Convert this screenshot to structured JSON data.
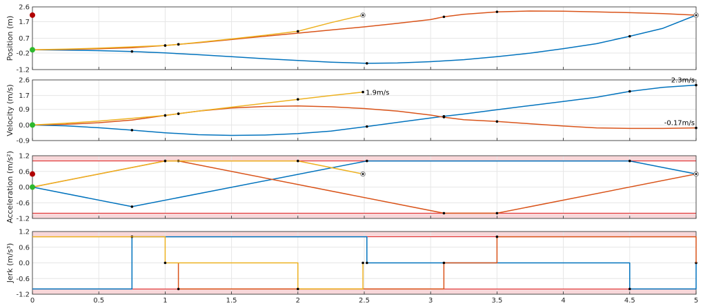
{
  "colors": {
    "blue": "#0072BD",
    "orange": "#D95319",
    "yellow": "#EDB120",
    "limit": "#E03030",
    "limit_band": "#F8D7D9",
    "start_marker": "#2DB82D",
    "end_marker": "#B00000",
    "grid": "#E6E6E6"
  },
  "x_axis": {
    "ticks": [
      0,
      0.5,
      1,
      1.5,
      2,
      2.5,
      3,
      3.5,
      4,
      4.5,
      5
    ],
    "tick_labels": [
      "0",
      "0.5",
      "1",
      "1.5",
      "2",
      "2.5",
      "3",
      "3.5",
      "4",
      "4.5",
      "5"
    ],
    "lim": [
      0,
      5
    ]
  },
  "chart_data": [
    {
      "type": "line",
      "ylabel": "Position (m)",
      "ylim": [
        -1.2,
        2.6
      ],
      "yticks": [
        2.6,
        1.7,
        0.7,
        -0.2,
        -1.2
      ],
      "ytick_labels": [
        "2.6",
        "1.7",
        "0.7",
        "-0.2",
        "-1.2"
      ],
      "grid": true,
      "limit": null,
      "start_value": 0.0,
      "target_value": 2.1,
      "series": [
        {
          "color_key": "blue",
          "x": [
            0,
            0.25,
            0.5,
            0.75,
            1.0,
            1.25,
            1.5,
            1.75,
            2.0,
            2.25,
            2.52,
            2.75,
            3.0,
            3.25,
            3.5,
            3.75,
            4.0,
            4.25,
            4.5,
            4.75,
            5.0
          ],
          "y": [
            0.0,
            -0.02,
            -0.05,
            -0.1,
            -0.19,
            -0.3,
            -0.42,
            -0.54,
            -0.65,
            -0.75,
            -0.82,
            -0.8,
            -0.72,
            -0.6,
            -0.42,
            -0.2,
            0.07,
            0.37,
            0.82,
            1.3,
            2.1
          ],
          "markers_x": [
            0.75,
            2.52,
            4.5,
            5.0
          ],
          "markers_y": [
            -0.1,
            -0.82,
            0.82,
            2.1
          ],
          "end_marker": true
        },
        {
          "color_key": "orange",
          "x": [
            0,
            0.25,
            0.5,
            0.75,
            1.0,
            1.1,
            1.25,
            1.5,
            1.75,
            2.0,
            2.25,
            2.5,
            2.75,
            3.0,
            3.1,
            3.25,
            3.5,
            3.75,
            4.0,
            4.25,
            4.5,
            4.75,
            5.0
          ],
          "y": [
            0.0,
            0.02,
            0.06,
            0.13,
            0.26,
            0.33,
            0.43,
            0.62,
            0.82,
            1.01,
            1.2,
            1.39,
            1.6,
            1.83,
            2.0,
            2.15,
            2.3,
            2.35,
            2.34,
            2.3,
            2.25,
            2.19,
            2.1
          ],
          "markers_x": [
            1.0,
            1.1,
            3.1,
            3.5
          ],
          "markers_y": [
            0.26,
            0.33,
            2.0,
            2.3
          ],
          "end_marker": true
        },
        {
          "color_key": "yellow",
          "x": [
            0,
            0.25,
            0.5,
            0.75,
            1.0,
            1.1,
            1.25,
            1.5,
            1.75,
            2.0,
            2.25,
            2.49
          ],
          "y": [
            0.0,
            0.04,
            0.1,
            0.18,
            0.26,
            0.33,
            0.45,
            0.66,
            0.88,
            1.12,
            1.65,
            2.1
          ],
          "markers_x": [
            1.0,
            1.1,
            2.0
          ],
          "markers_y": [
            0.26,
            0.33,
            1.12
          ],
          "end_marker": true
        }
      ]
    },
    {
      "type": "line",
      "ylabel": "Velocity (m/s)",
      "ylim": [
        -0.9,
        2.6
      ],
      "yticks": [
        2.6,
        1.7,
        0.9,
        0.0,
        -0.9
      ],
      "ytick_labels": [
        "2.6",
        "1.7",
        "0.9",
        "0.0",
        "-0.9"
      ],
      "grid": true,
      "limit": null,
      "start_value": 0.0,
      "target_value": null,
      "series": [
        {
          "color_key": "blue",
          "x": [
            0,
            0.25,
            0.5,
            0.75,
            1.0,
            1.25,
            1.5,
            1.75,
            2.0,
            2.25,
            2.52,
            2.75,
            3.0,
            3.1,
            3.25,
            3.5,
            3.75,
            4.0,
            4.25,
            4.5,
            4.75,
            5.0
          ],
          "y": [
            0.0,
            -0.05,
            -0.16,
            -0.3,
            -0.45,
            -0.56,
            -0.6,
            -0.58,
            -0.5,
            -0.35,
            -0.09,
            0.15,
            0.4,
            0.5,
            0.63,
            0.88,
            1.12,
            1.36,
            1.6,
            1.94,
            2.17,
            2.3
          ],
          "markers_x": [
            0.75,
            2.52,
            3.1,
            4.5,
            5.0
          ],
          "markers_y": [
            -0.3,
            -0.09,
            0.5,
            1.94,
            2.3
          ]
        },
        {
          "color_key": "orange",
          "x": [
            0,
            0.25,
            0.5,
            0.75,
            1.0,
            1.1,
            1.25,
            1.5,
            1.75,
            2.0,
            2.25,
            2.5,
            2.75,
            3.0,
            3.1,
            3.25,
            3.5,
            3.75,
            4.0,
            4.25,
            4.5,
            4.75,
            5.0
          ],
          "y": [
            0.0,
            0.04,
            0.13,
            0.28,
            0.55,
            0.65,
            0.8,
            0.98,
            1.07,
            1.1,
            1.05,
            0.95,
            0.8,
            0.57,
            0.45,
            0.3,
            0.2,
            0.07,
            -0.06,
            -0.17,
            -0.2,
            -0.2,
            -0.17
          ],
          "markers_x": [
            1.0,
            1.1,
            3.1,
            3.5,
            5.0
          ],
          "markers_y": [
            0.55,
            0.65,
            0.45,
            0.2,
            -0.17
          ]
        },
        {
          "color_key": "yellow",
          "x": [
            0,
            0.25,
            0.5,
            0.75,
            1.0,
            1.1,
            1.25,
            1.5,
            1.75,
            2.0,
            2.25,
            2.49
          ],
          "y": [
            0.0,
            0.1,
            0.22,
            0.38,
            0.55,
            0.65,
            0.8,
            1.03,
            1.25,
            1.48,
            1.7,
            1.9
          ],
          "markers_x": [
            1.0,
            1.1,
            2.0,
            2.49
          ],
          "markers_y": [
            0.55,
            0.65,
            1.48,
            1.9
          ]
        }
      ],
      "annotations": [
        {
          "text": "1.9m/s",
          "x": 2.49,
          "y": 1.9,
          "anchor": "right-of"
        },
        {
          "text": "2.3m/s",
          "x": 5.0,
          "y": 2.3,
          "anchor": "above-left"
        },
        {
          "text": "-0.17m/s",
          "x": 5.0,
          "y": -0.17,
          "anchor": "above-left"
        }
      ]
    },
    {
      "type": "line",
      "ylabel": "Acceleration (m/s²)",
      "ylim": [
        -1.2,
        1.2
      ],
      "yticks": [
        1.2,
        0.6,
        0.0,
        -0.6,
        -1.2
      ],
      "ytick_labels": [
        "1.2",
        "0.6",
        "0.0",
        "-0.6",
        "-1.2"
      ],
      "grid": true,
      "limit": 1.0,
      "start_value": 0.0,
      "target_value": 0.5,
      "series": [
        {
          "color_key": "blue",
          "x": [
            0,
            0.75,
            2.52,
            4.5,
            5.0
          ],
          "y": [
            0.0,
            -0.75,
            1.0,
            1.0,
            0.5
          ],
          "markers_x": [
            0.75,
            2.52,
            4.5
          ],
          "markers_y": [
            -0.75,
            1.0,
            1.0
          ],
          "end_marker": true
        },
        {
          "color_key": "orange",
          "x": [
            0,
            1.0,
            1.1,
            3.1,
            3.5,
            5.0
          ],
          "y": [
            0.0,
            1.0,
            1.0,
            -1.0,
            -1.0,
            0.5
          ],
          "markers_x": [
            1.0,
            1.1,
            3.1,
            3.5
          ],
          "markers_y": [
            1.0,
            1.0,
            -1.0,
            -1.0
          ],
          "end_marker": true
        },
        {
          "color_key": "yellow",
          "x": [
            0,
            1.0,
            2.0,
            2.49
          ],
          "y": [
            0.0,
            1.0,
            1.0,
            0.5
          ],
          "markers_x": [
            1.0,
            2.0
          ],
          "markers_y": [
            1.0,
            1.0
          ],
          "end_marker": true
        }
      ]
    },
    {
      "type": "line",
      "ylabel": "Jerk (m/s³)",
      "ylim": [
        -1.2,
        1.2
      ],
      "yticks": [
        1.2,
        0.6,
        0.0,
        -0.6,
        -1.2
      ],
      "ytick_labels": [
        "1.2",
        "0.6",
        "0.0",
        "-0.6",
        "-1.2"
      ],
      "grid": true,
      "limit": 1.0,
      "start_value": null,
      "target_value": null,
      "series": [
        {
          "color_key": "blue",
          "x": [
            0,
            0.75,
            0.75,
            2.52,
            2.52,
            4.5,
            4.5,
            5.0,
            5.0
          ],
          "y": [
            -1.0,
            -1.0,
            1.0,
            1.0,
            0.0,
            0.0,
            -1.0,
            -1.0,
            0.0
          ],
          "markers_x": [
            0.75,
            2.52,
            4.5,
            5.0
          ],
          "markers_y": [
            1.0,
            0.0,
            -1.0,
            0.0
          ]
        },
        {
          "color_key": "orange",
          "x": [
            1.1,
            1.1,
            3.1,
            3.1,
            3.5,
            3.5,
            5.0,
            5.0
          ],
          "y": [
            0.0,
            -1.0,
            -1.0,
            0.0,
            0.0,
            1.0,
            1.0,
            0.0
          ],
          "markers_x": [
            1.1,
            3.1,
            3.5
          ],
          "markers_y": [
            -1.0,
            0.0,
            1.0
          ]
        },
        {
          "color_key": "yellow",
          "x": [
            0,
            1.0,
            1.0,
            2.0,
            2.0,
            2.49,
            2.49
          ],
          "y": [
            1.0,
            1.0,
            0.0,
            0.0,
            -1.0,
            -1.0,
            0.0
          ],
          "markers_x": [
            1.0,
            2.0,
            2.49
          ],
          "markers_y": [
            0.0,
            -1.0,
            0.0
          ]
        }
      ]
    }
  ]
}
